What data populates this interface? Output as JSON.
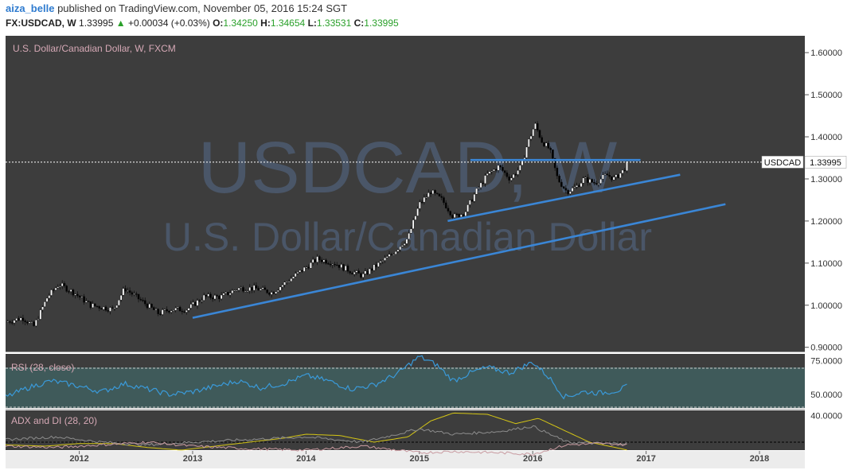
{
  "header": {
    "author": "aiza_belle",
    "published_text": "published on TradingView.com, November 05, 2016 15:24 SGT",
    "symbol": "FX:USDCAD, W",
    "last": "1.33995",
    "change": "+0.00034 (+0.03%)",
    "o_label": "O:",
    "o_value": "1.34250",
    "h_label": "H:",
    "h_value": "1.34654",
    "l_label": "L:",
    "l_value": "1.33531",
    "c_label": "C:",
    "c_value": "1.33995"
  },
  "colors": {
    "panel_bg": "#3d3d3d",
    "rsi_band": "#3f5a5a",
    "rsi_line": "#3a9ad9",
    "trendline": "#3a86d6",
    "candle_up": "#ffffff",
    "candle_down": "#000000",
    "adx": "#d4c515",
    "di_plus": "#8d8d8d",
    "di_minus": "#c89aa0",
    "watermark": "#4a5668"
  },
  "chart_data": {
    "type": "candlestick",
    "title": "U.S. Dollar/Canadian Dollar, W, FXCM",
    "watermark_symbol": "USDCAD, W",
    "watermark_name": "U.S. Dollar/Canadian Dollar",
    "price_label": "USDCAD",
    "last_price": "1.33995",
    "xlim": [
      2011.35,
      2018.4
    ],
    "ylim": [
      0.89,
      1.64
    ],
    "y_ticks": [
      "0.90000",
      "1.00000",
      "1.10000",
      "1.20000",
      "1.30000",
      "1.40000",
      "1.50000",
      "1.60000"
    ],
    "y_tick_values": [
      0.9,
      1.0,
      1.1,
      1.2,
      1.3,
      1.4,
      1.5,
      1.6
    ],
    "x_ticks": [
      "2012",
      "2013",
      "2014",
      "2015",
      "2016",
      "2017",
      "2018"
    ],
    "x_tick_values": [
      2012,
      2013,
      2014,
      2015,
      2016,
      2017,
      2018
    ],
    "close_anchors": [
      [
        2011.35,
        0.96
      ],
      [
        2011.5,
        0.97
      ],
      [
        2011.6,
        0.95
      ],
      [
        2011.72,
        1.02
      ],
      [
        2011.82,
        1.05
      ],
      [
        2011.95,
        1.03
      ],
      [
        2012.1,
        1.0
      ],
      [
        2012.3,
        0.99
      ],
      [
        2012.4,
        1.04
      ],
      [
        2012.55,
        1.01
      ],
      [
        2012.7,
        0.98
      ],
      [
        2012.8,
        0.99
      ],
      [
        2012.95,
        0.99
      ],
      [
        2013.1,
        1.02
      ],
      [
        2013.25,
        1.02
      ],
      [
        2013.4,
        1.04
      ],
      [
        2013.55,
        1.04
      ],
      [
        2013.7,
        1.03
      ],
      [
        2013.85,
        1.06
      ],
      [
        2014.0,
        1.09
      ],
      [
        2014.1,
        1.11
      ],
      [
        2014.25,
        1.1
      ],
      [
        2014.4,
        1.08
      ],
      [
        2014.5,
        1.07
      ],
      [
        2014.6,
        1.09
      ],
      [
        2014.75,
        1.12
      ],
      [
        2014.9,
        1.16
      ],
      [
        2015.0,
        1.24
      ],
      [
        2015.1,
        1.27
      ],
      [
        2015.2,
        1.25
      ],
      [
        2015.3,
        1.21
      ],
      [
        2015.4,
        1.22
      ],
      [
        2015.5,
        1.27
      ],
      [
        2015.6,
        1.31
      ],
      [
        2015.7,
        1.33
      ],
      [
        2015.8,
        1.3
      ],
      [
        2015.9,
        1.33
      ],
      [
        2015.95,
        1.38
      ],
      [
        2016.02,
        1.43
      ],
      [
        2016.08,
        1.39
      ],
      [
        2016.15,
        1.37
      ],
      [
        2016.22,
        1.3
      ],
      [
        2016.3,
        1.27
      ],
      [
        2016.38,
        1.28
      ],
      [
        2016.45,
        1.3
      ],
      [
        2016.55,
        1.29
      ],
      [
        2016.65,
        1.31
      ],
      [
        2016.72,
        1.3
      ],
      [
        2016.8,
        1.32
      ],
      [
        2016.84,
        1.34
      ]
    ],
    "trendlines": [
      {
        "x": [
          2013.0,
          2017.7
        ],
        "y": [
          0.97,
          1.24
        ]
      },
      {
        "x": [
          2015.25,
          2017.3
        ],
        "y": [
          1.2,
          1.31
        ]
      },
      {
        "x": [
          2015.45,
          2016.95
        ],
        "y": [
          1.345,
          1.345
        ]
      }
    ],
    "rsi": {
      "label": "RSI (28, close)",
      "ylim": [
        40,
        80
      ],
      "y_ticks": [
        "75.0000",
        "50.0000"
      ],
      "y_tick_values": [
        75,
        50
      ],
      "band": [
        30,
        70
      ],
      "anchors": [
        [
          2011.35,
          48
        ],
        [
          2011.55,
          55
        ],
        [
          2011.75,
          60
        ],
        [
          2011.95,
          57
        ],
        [
          2012.2,
          52
        ],
        [
          2012.4,
          58
        ],
        [
          2012.6,
          54
        ],
        [
          2012.8,
          50
        ],
        [
          2013.0,
          52
        ],
        [
          2013.2,
          56
        ],
        [
          2013.4,
          60
        ],
        [
          2013.6,
          55
        ],
        [
          2013.8,
          58
        ],
        [
          2014.0,
          64
        ],
        [
          2014.2,
          60
        ],
        [
          2014.4,
          54
        ],
        [
          2014.6,
          57
        ],
        [
          2014.8,
          65
        ],
        [
          2015.0,
          78
        ],
        [
          2015.15,
          72
        ],
        [
          2015.3,
          60
        ],
        [
          2015.45,
          66
        ],
        [
          2015.6,
          70
        ],
        [
          2015.8,
          66
        ],
        [
          2016.0,
          74
        ],
        [
          2016.15,
          62
        ],
        [
          2016.28,
          48
        ],
        [
          2016.45,
          52
        ],
        [
          2016.6,
          51
        ],
        [
          2016.75,
          53
        ],
        [
          2016.84,
          56
        ]
      ]
    },
    "adx": {
      "label": "ADX and DI (28, 20)",
      "ylim": [
        14,
        44
      ],
      "y_ticks": [
        "40.0000"
      ],
      "y_tick_values": [
        40
      ],
      "level": 20,
      "series": [
        {
          "name": "ADX",
          "anchors": [
            [
              2011.35,
              18
            ],
            [
              2011.7,
              17
            ],
            [
              2012.0,
              19
            ],
            [
              2012.3,
              19
            ],
            [
              2012.6,
              16
            ],
            [
              2012.9,
              14
            ],
            [
              2013.2,
              17
            ],
            [
              2013.5,
              20
            ],
            [
              2013.8,
              23
            ],
            [
              2014.0,
              26
            ],
            [
              2014.3,
              25
            ],
            [
              2014.6,
              20
            ],
            [
              2014.9,
              24
            ],
            [
              2015.1,
              36
            ],
            [
              2015.3,
              42
            ],
            [
              2015.6,
              41
            ],
            [
              2015.85,
              34
            ],
            [
              2016.05,
              38
            ],
            [
              2016.25,
              30
            ],
            [
              2016.5,
              20
            ],
            [
              2016.84,
              14
            ]
          ]
        },
        {
          "name": "DI+",
          "anchors": [
            [
              2011.35,
              22
            ],
            [
              2011.8,
              24
            ],
            [
              2012.2,
              20
            ],
            [
              2012.6,
              18
            ],
            [
              2013.0,
              20
            ],
            [
              2013.5,
              22
            ],
            [
              2014.0,
              24
            ],
            [
              2014.5,
              20
            ],
            [
              2015.0,
              30
            ],
            [
              2015.3,
              26
            ],
            [
              2015.7,
              28
            ],
            [
              2016.0,
              32
            ],
            [
              2016.3,
              20
            ],
            [
              2016.6,
              19
            ],
            [
              2016.84,
              19
            ]
          ]
        },
        {
          "name": "DI-",
          "anchors": [
            [
              2011.35,
              17
            ],
            [
              2011.8,
              16
            ],
            [
              2012.2,
              18
            ],
            [
              2012.6,
              20
            ],
            [
              2013.0,
              17
            ],
            [
              2013.5,
              15
            ],
            [
              2014.0,
              14
            ],
            [
              2014.5,
              17
            ],
            [
              2015.0,
              12
            ],
            [
              2015.3,
              13
            ],
            [
              2015.7,
              12
            ],
            [
              2016.0,
              11
            ],
            [
              2016.3,
              18
            ],
            [
              2016.6,
              19
            ],
            [
              2016.84,
              18
            ]
          ]
        }
      ]
    }
  }
}
